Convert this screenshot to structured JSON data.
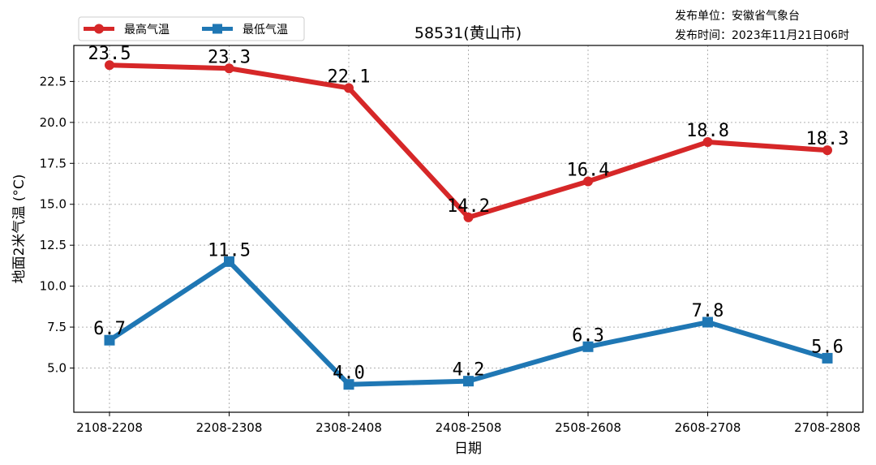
{
  "info": {
    "publisher": "发布单位：安徽省气象台",
    "time": "发布时间：2023年11月21日06时"
  },
  "chart_data": {
    "type": "line",
    "title": "58531(黄山市)",
    "xlabel": "日期",
    "ylabel": "地面2米气温 (°C)",
    "categories": [
      "2108-2208",
      "2208-2308",
      "2308-2408",
      "2408-2508",
      "2508-2608",
      "2608-2708",
      "2708-2808"
    ],
    "ylim": [
      2.3,
      24.7
    ],
    "yticks": [
      "5.0",
      "7.5",
      "10.0",
      "12.5",
      "15.0",
      "17.5",
      "20.0",
      "22.5"
    ],
    "grid": true,
    "legend_position": "top-left",
    "series": [
      {
        "name": "最高气温",
        "color": "#d62728",
        "marker": "circle",
        "values": [
          23.5,
          23.3,
          22.1,
          14.2,
          16.4,
          18.8,
          18.3
        ],
        "labels": [
          "23.5",
          "23.3",
          "22.1",
          "14.2",
          "16.4",
          "18.8",
          "18.3"
        ]
      },
      {
        "name": "最低气温",
        "color": "#1f77b4",
        "marker": "square",
        "values": [
          6.7,
          11.5,
          4.0,
          4.2,
          6.3,
          7.8,
          5.6
        ],
        "labels": [
          "6.7",
          "11.5",
          "4.0",
          "4.2",
          "6.3",
          "7.8",
          "5.6"
        ]
      }
    ]
  }
}
